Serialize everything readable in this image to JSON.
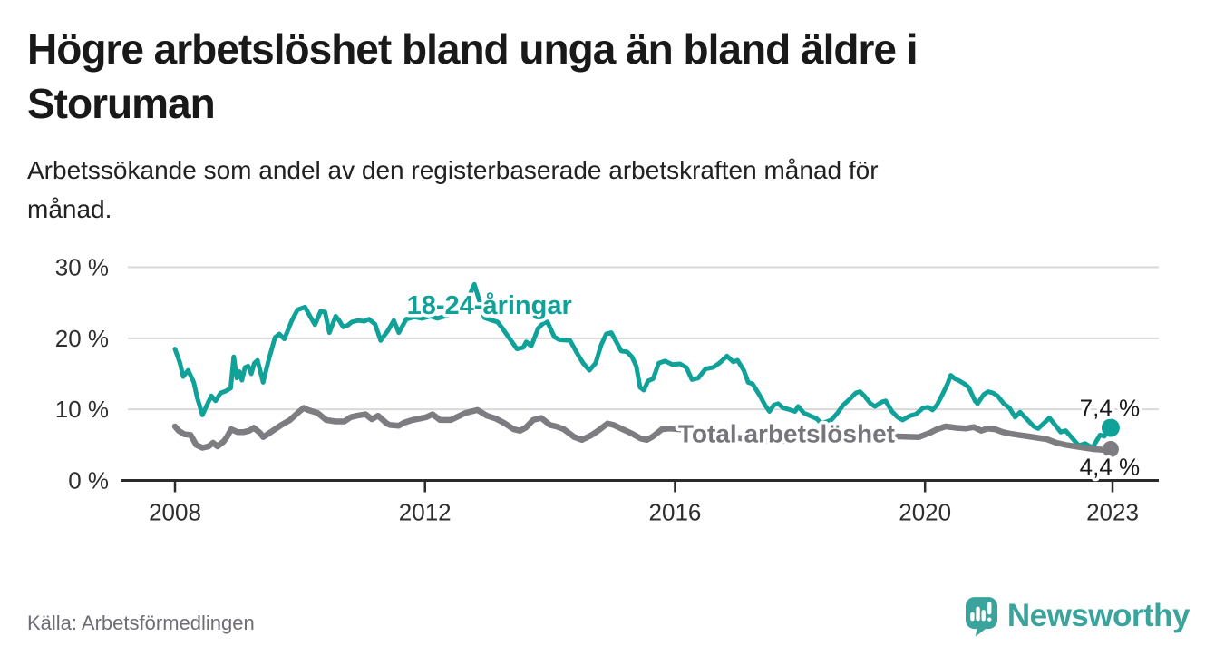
{
  "header": {
    "title_lines": [
      "Högre arbetslöshet bland unga än bland äldre i",
      "Storuman"
    ],
    "subtitle_lines": [
      "Arbetssökande som andel av den registerbaserade arbetskraften månad för",
      "månad."
    ]
  },
  "footer": {
    "source": "Källa: Arbetsförmedlingen"
  },
  "logo": {
    "wordmark": "Newsworthy",
    "icon": "speech-bubble-bar-chart-exclamation",
    "color": "#3aa39c"
  },
  "chart_data": {
    "type": "line",
    "title": "Högre arbetslöshet bland unga än bland äldre i Storuman",
    "subtitle": "Arbetssökande som andel av den registerbaserade arbetskraften månad för månad.",
    "source": "Källa: Arbetsförmedlingen",
    "grid": "horizontal",
    "legend_position": "inline-labels",
    "style": {
      "grid_color": "#d9d9d9",
      "axis_color": "#2b2b2b",
      "tick_color": "#2e2e2e",
      "background": "#ffffff"
    },
    "x_axis": {
      "range": [
        2007.6,
        2023.75
      ],
      "ticks": [
        2008,
        2012,
        2016,
        2020,
        2023
      ],
      "tick_labels": [
        "2008",
        "2012",
        "2016",
        "2020",
        "2023"
      ]
    },
    "y_axis": {
      "range": [
        0,
        30
      ],
      "unit": "%",
      "ticks": [
        0,
        10,
        20,
        30
      ],
      "tick_labels": [
        "0 %",
        "10 %",
        "20 %",
        "30 %"
      ]
    },
    "series": [
      {
        "id": "young-18-24",
        "name": "18-24-åringar",
        "color": "#10a199",
        "stroke_width": 5,
        "dot_radius": 10,
        "end_value": 7.4,
        "end_label": "7,4 %",
        "points": [
          [
            2008.0,
            18.5
          ],
          [
            2008.08,
            16.5
          ],
          [
            2008.13,
            14.6
          ],
          [
            2008.21,
            15.5
          ],
          [
            2008.3,
            13.8
          ],
          [
            2008.36,
            11.5
          ],
          [
            2008.44,
            9.2
          ],
          [
            2008.51,
            10.6
          ],
          [
            2008.58,
            11.9
          ],
          [
            2008.65,
            11.2
          ],
          [
            2008.73,
            12.3
          ],
          [
            2008.82,
            12.6
          ],
          [
            2008.89,
            13.0
          ],
          [
            2008.94,
            17.4
          ],
          [
            2008.99,
            14.4
          ],
          [
            2009.03,
            15.3
          ],
          [
            2009.07,
            14.1
          ],
          [
            2009.12,
            15.9
          ],
          [
            2009.17,
            16.1
          ],
          [
            2009.22,
            15.0
          ],
          [
            2009.27,
            16.5
          ],
          [
            2009.32,
            16.9
          ],
          [
            2009.41,
            13.8
          ],
          [
            2009.5,
            17.0
          ],
          [
            2009.6,
            20.1
          ],
          [
            2009.67,
            20.6
          ],
          [
            2009.75,
            19.9
          ],
          [
            2009.87,
            22.5
          ],
          [
            2009.96,
            24.0
          ],
          [
            2010.08,
            24.4
          ],
          [
            2010.16,
            23.1
          ],
          [
            2010.24,
            21.9
          ],
          [
            2010.33,
            23.8
          ],
          [
            2010.4,
            23.7
          ],
          [
            2010.47,
            20.8
          ],
          [
            2010.57,
            23.1
          ],
          [
            2010.62,
            22.6
          ],
          [
            2010.69,
            21.6
          ],
          [
            2010.76,
            21.8
          ],
          [
            2010.83,
            22.3
          ],
          [
            2010.93,
            22.5
          ],
          [
            2011.03,
            22.4
          ],
          [
            2011.1,
            22.7
          ],
          [
            2011.2,
            22.0
          ],
          [
            2011.29,
            19.7
          ],
          [
            2011.4,
            21.0
          ],
          [
            2011.5,
            22.5
          ],
          [
            2011.58,
            20.8
          ],
          [
            2011.7,
            22.7
          ],
          [
            2011.83,
            23.0
          ],
          [
            2011.95,
            22.8
          ],
          [
            2012.09,
            23.1
          ],
          [
            2012.2,
            22.8
          ],
          [
            2012.35,
            23.2
          ],
          [
            2012.5,
            23.6
          ],
          [
            2012.62,
            24.3
          ],
          [
            2012.71,
            26.0
          ],
          [
            2012.79,
            27.6
          ],
          [
            2012.88,
            25.0
          ],
          [
            2012.95,
            22.9
          ],
          [
            2013.08,
            22.5
          ],
          [
            2013.16,
            22.3
          ],
          [
            2013.24,
            21.4
          ],
          [
            2013.35,
            20.0
          ],
          [
            2013.47,
            18.5
          ],
          [
            2013.57,
            18.7
          ],
          [
            2013.62,
            19.5
          ],
          [
            2013.7,
            18.9
          ],
          [
            2013.81,
            21.4
          ],
          [
            2013.89,
            22.1
          ],
          [
            2013.96,
            22.3
          ],
          [
            2014.07,
            20.2
          ],
          [
            2014.15,
            19.8
          ],
          [
            2014.32,
            19.7
          ],
          [
            2014.44,
            17.8
          ],
          [
            2014.53,
            16.5
          ],
          [
            2014.63,
            15.5
          ],
          [
            2014.73,
            16.5
          ],
          [
            2014.82,
            19.1
          ],
          [
            2014.9,
            20.6
          ],
          [
            2014.98,
            20.8
          ],
          [
            2015.06,
            19.5
          ],
          [
            2015.14,
            18.2
          ],
          [
            2015.23,
            18.1
          ],
          [
            2015.31,
            17.4
          ],
          [
            2015.38,
            16.1
          ],
          [
            2015.44,
            13.1
          ],
          [
            2015.5,
            12.7
          ],
          [
            2015.57,
            14.0
          ],
          [
            2015.65,
            14.3
          ],
          [
            2015.74,
            16.5
          ],
          [
            2015.84,
            16.8
          ],
          [
            2015.96,
            16.3
          ],
          [
            2016.08,
            16.4
          ],
          [
            2016.18,
            15.9
          ],
          [
            2016.27,
            14.2
          ],
          [
            2016.37,
            14.4
          ],
          [
            2016.49,
            15.7
          ],
          [
            2016.61,
            15.9
          ],
          [
            2016.71,
            16.5
          ],
          [
            2016.83,
            17.5
          ],
          [
            2016.93,
            16.7
          ],
          [
            2017.0,
            16.9
          ],
          [
            2017.1,
            15.5
          ],
          [
            2017.17,
            13.8
          ],
          [
            2017.24,
            13.6
          ],
          [
            2017.36,
            11.9
          ],
          [
            2017.44,
            10.6
          ],
          [
            2017.51,
            9.7
          ],
          [
            2017.58,
            10.6
          ],
          [
            2017.65,
            10.8
          ],
          [
            2017.73,
            10.2
          ],
          [
            2017.82,
            10.0
          ],
          [
            2017.92,
            9.7
          ],
          [
            2017.97,
            10.4
          ],
          [
            2018.06,
            9.5
          ],
          [
            2018.16,
            9.1
          ],
          [
            2018.26,
            8.7
          ],
          [
            2018.35,
            8.0
          ],
          [
            2018.5,
            8.5
          ],
          [
            2018.6,
            9.5
          ],
          [
            2018.69,
            10.6
          ],
          [
            2018.79,
            11.4
          ],
          [
            2018.89,
            12.3
          ],
          [
            2018.96,
            12.5
          ],
          [
            2019.03,
            11.9
          ],
          [
            2019.13,
            10.8
          ],
          [
            2019.2,
            10.4
          ],
          [
            2019.3,
            11.0
          ],
          [
            2019.37,
            11.2
          ],
          [
            2019.47,
            9.7
          ],
          [
            2019.56,
            8.9
          ],
          [
            2019.64,
            8.5
          ],
          [
            2019.76,
            9.1
          ],
          [
            2019.85,
            9.3
          ],
          [
            2019.97,
            10.2
          ],
          [
            2020.05,
            10.3
          ],
          [
            2020.12,
            9.9
          ],
          [
            2020.19,
            10.6
          ],
          [
            2020.29,
            12.3
          ],
          [
            2020.36,
            13.6
          ],
          [
            2020.41,
            14.8
          ],
          [
            2020.48,
            14.3
          ],
          [
            2020.55,
            14.0
          ],
          [
            2020.63,
            13.6
          ],
          [
            2020.7,
            13.1
          ],
          [
            2020.8,
            11.2
          ],
          [
            2020.84,
            10.8
          ],
          [
            2020.94,
            12.1
          ],
          [
            2021.01,
            12.5
          ],
          [
            2021.09,
            12.3
          ],
          [
            2021.16,
            11.9
          ],
          [
            2021.26,
            10.8
          ],
          [
            2021.35,
            10.2
          ],
          [
            2021.44,
            8.9
          ],
          [
            2021.52,
            9.6
          ],
          [
            2021.63,
            8.6
          ],
          [
            2021.74,
            7.6
          ],
          [
            2021.81,
            7.3
          ],
          [
            2021.99,
            8.8
          ],
          [
            2022.17,
            6.8
          ],
          [
            2022.25,
            7.0
          ],
          [
            2022.46,
            4.9
          ],
          [
            2022.56,
            5.2
          ],
          [
            2022.68,
            4.6
          ],
          [
            2022.8,
            6.4
          ],
          [
            2022.87,
            6.2
          ],
          [
            2022.97,
            7.4
          ]
        ]
      },
      {
        "id": "total",
        "name": "Total arbetslöshet",
        "color": "#7d7d81",
        "stroke_width": 6.5,
        "dot_radius": 9,
        "end_value": 4.4,
        "end_label": "4,4 %",
        "points": [
          [
            2008.0,
            7.6
          ],
          [
            2008.06,
            7.0
          ],
          [
            2008.15,
            6.5
          ],
          [
            2008.25,
            6.4
          ],
          [
            2008.34,
            5.0
          ],
          [
            2008.44,
            4.6
          ],
          [
            2008.54,
            4.8
          ],
          [
            2008.61,
            5.3
          ],
          [
            2008.68,
            4.8
          ],
          [
            2008.78,
            5.5
          ],
          [
            2008.83,
            6.1
          ],
          [
            2008.9,
            7.2
          ],
          [
            2009.0,
            6.8
          ],
          [
            2009.1,
            6.8
          ],
          [
            2009.19,
            7.0
          ],
          [
            2009.26,
            7.4
          ],
          [
            2009.36,
            6.7
          ],
          [
            2009.41,
            6.1
          ],
          [
            2009.5,
            6.6
          ],
          [
            2009.6,
            7.2
          ],
          [
            2009.7,
            7.8
          ],
          [
            2009.84,
            8.5
          ],
          [
            2009.99,
            9.7
          ],
          [
            2010.06,
            10.2
          ],
          [
            2010.13,
            9.9
          ],
          [
            2010.28,
            9.5
          ],
          [
            2010.42,
            8.5
          ],
          [
            2010.57,
            8.3
          ],
          [
            2010.71,
            8.3
          ],
          [
            2010.81,
            8.9
          ],
          [
            2010.91,
            9.1
          ],
          [
            2011.05,
            9.3
          ],
          [
            2011.15,
            8.6
          ],
          [
            2011.25,
            9.1
          ],
          [
            2011.39,
            8.0
          ],
          [
            2011.44,
            7.8
          ],
          [
            2011.58,
            7.7
          ],
          [
            2011.66,
            8.1
          ],
          [
            2011.8,
            8.5
          ],
          [
            2011.92,
            8.7
          ],
          [
            2012.02,
            8.9
          ],
          [
            2012.12,
            9.3
          ],
          [
            2012.24,
            8.5
          ],
          [
            2012.41,
            8.5
          ],
          [
            2012.65,
            9.5
          ],
          [
            2012.84,
            9.9
          ],
          [
            2012.99,
            9.1
          ],
          [
            2013.13,
            8.7
          ],
          [
            2013.28,
            8.0
          ],
          [
            2013.42,
            7.2
          ],
          [
            2013.52,
            7.0
          ],
          [
            2013.61,
            7.4
          ],
          [
            2013.73,
            8.5
          ],
          [
            2013.86,
            8.8
          ],
          [
            2014.0,
            7.8
          ],
          [
            2014.1,
            7.6
          ],
          [
            2014.22,
            7.2
          ],
          [
            2014.39,
            6.1
          ],
          [
            2014.51,
            5.7
          ],
          [
            2014.65,
            6.3
          ],
          [
            2014.77,
            7.0
          ],
          [
            2014.92,
            8.0
          ],
          [
            2015.02,
            7.8
          ],
          [
            2015.16,
            7.2
          ],
          [
            2015.31,
            6.6
          ],
          [
            2015.45,
            5.9
          ],
          [
            2015.55,
            5.7
          ],
          [
            2015.65,
            6.2
          ],
          [
            2015.79,
            7.2
          ],
          [
            2015.91,
            7.3
          ],
          [
            2016.08,
            7.2
          ],
          [
            2016.4,
            6.8
          ],
          [
            2016.8,
            6.2
          ],
          [
            2017.2,
            5.8
          ],
          [
            2017.6,
            5.5
          ],
          [
            2018.0,
            5.8
          ],
          [
            2018.5,
            6.1
          ],
          [
            2019.0,
            6.3
          ],
          [
            2019.5,
            6.2
          ],
          [
            2019.9,
            6.1
          ],
          [
            2020.08,
            6.7
          ],
          [
            2020.19,
            7.2
          ],
          [
            2020.33,
            7.6
          ],
          [
            2020.5,
            7.4
          ],
          [
            2020.65,
            7.3
          ],
          [
            2020.78,
            7.5
          ],
          [
            2020.9,
            7.0
          ],
          [
            2021.0,
            7.3
          ],
          [
            2021.12,
            7.2
          ],
          [
            2021.24,
            6.8
          ],
          [
            2021.35,
            6.6
          ],
          [
            2021.5,
            6.4
          ],
          [
            2021.65,
            6.2
          ],
          [
            2021.8,
            6.0
          ],
          [
            2021.95,
            5.8
          ],
          [
            2022.1,
            5.3
          ],
          [
            2022.25,
            5.0
          ],
          [
            2022.4,
            4.8
          ],
          [
            2022.55,
            4.6
          ],
          [
            2022.7,
            4.4
          ],
          [
            2022.85,
            4.3
          ],
          [
            2022.97,
            4.4
          ]
        ]
      }
    ],
    "annotations": [
      {
        "name": "series-label-young",
        "text": "18-24-åringar",
        "x": 2013.03,
        "y": 24.7,
        "color": "#10a199",
        "weight": 700,
        "size": 29,
        "anchor": "middle"
      },
      {
        "name": "series-label-total",
        "text": "Total arbetslöshet",
        "x": 2016.05,
        "y": 6.6,
        "color": "#75757a",
        "weight": 700,
        "size": 28,
        "anchor": "start"
      },
      {
        "name": "end-label-young",
        "text": "7,4 %",
        "x": 2022.955,
        "y": 10.2,
        "color": "#1a1a1a",
        "weight": 400,
        "size": 26,
        "anchor": "middle"
      },
      {
        "name": "end-label-total",
        "text": "4,4 %",
        "x": 2022.955,
        "y": 1.9,
        "color": "#1a1a1a",
        "weight": 400,
        "size": 26,
        "anchor": "middle"
      }
    ]
  }
}
